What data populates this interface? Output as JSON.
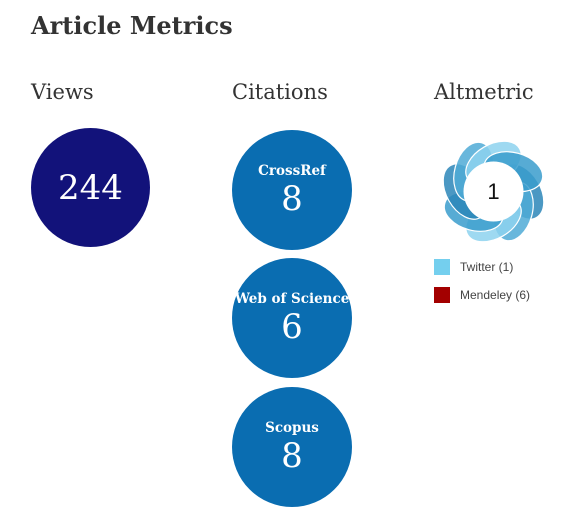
{
  "title": "Article Metrics",
  "views": {
    "heading": "Views",
    "value": "244",
    "color": "#12127a"
  },
  "citations": {
    "heading": "Citations",
    "color": "#0a6db1",
    "items": [
      {
        "name": "CrossRef",
        "value": "8"
      },
      {
        "name": "Web of Science",
        "value": "6"
      },
      {
        "name": "Scopus",
        "value": "8"
      }
    ]
  },
  "altmetric": {
    "heading": "Altmetric",
    "score": "1",
    "ring_colors": [
      "#2b86b8",
      "#4faad6",
      "#8dd2ee",
      "#3a9ccd"
    ],
    "legend": [
      {
        "label": "Twitter (1)",
        "color": "#74cfee"
      },
      {
        "label": "Mendeley (6)",
        "color": "#a30000"
      }
    ]
  }
}
